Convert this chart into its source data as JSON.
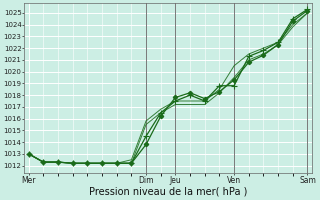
{
  "bg_color": "#cceee4",
  "grid_color": "#ffffff",
  "line_color": "#1a6b1a",
  "xlabel": "Pression niveau de la mer( hPa )",
  "xlabel_fontsize": 7,
  "yticks": [
    1012,
    1013,
    1014,
    1015,
    1016,
    1017,
    1018,
    1019,
    1020,
    1021,
    1022,
    1023,
    1024,
    1025
  ],
  "ylim": [
    1011.4,
    1025.8
  ],
  "xtick_labels": [
    "Mer",
    "Dim",
    "Jeu",
    "Ven",
    "Sam"
  ],
  "xtick_positions": [
    0,
    8,
    10,
    14,
    19
  ],
  "vline_positions": [
    8,
    10,
    14,
    19
  ],
  "xlim": [
    -0.3,
    19.3
  ],
  "series1_x": [
    0,
    1,
    2,
    3,
    4,
    5,
    6,
    7,
    8,
    9,
    10,
    11,
    12,
    13,
    14,
    15,
    16,
    17,
    18,
    19
  ],
  "series1_y": [
    1013.0,
    1012.3,
    1012.3,
    1012.2,
    1012.2,
    1012.2,
    1012.2,
    1012.2,
    1013.8,
    1016.2,
    1017.8,
    1018.2,
    1017.7,
    1018.3,
    1019.3,
    1020.8,
    1021.4,
    1022.3,
    1024.3,
    1025.2
  ],
  "series2_x": [
    0,
    1,
    2,
    3,
    4,
    5,
    6,
    7,
    8,
    9,
    10,
    11,
    12,
    13,
    14,
    15,
    16,
    17,
    18,
    19
  ],
  "series2_y": [
    1013.0,
    1012.3,
    1012.3,
    1012.2,
    1012.2,
    1012.2,
    1012.2,
    1012.2,
    1014.5,
    1016.5,
    1017.5,
    1018.0,
    1017.5,
    1018.8,
    1018.8,
    1021.3,
    1021.8,
    1022.5,
    1024.5,
    1025.3
  ],
  "series3_x": [
    0,
    1,
    2,
    3,
    4,
    5,
    6,
    7,
    8,
    9,
    10,
    11,
    12,
    13,
    14,
    15,
    16,
    17,
    18,
    19
  ],
  "series3_y": [
    1013.0,
    1012.3,
    1012.3,
    1012.2,
    1012.2,
    1012.2,
    1012.2,
    1012.5,
    1015.8,
    1016.8,
    1017.5,
    1017.5,
    1017.5,
    1018.5,
    1020.5,
    1021.5,
    1022.0,
    1022.5,
    1024.0,
    1025.0
  ],
  "series4_x": [
    0,
    1,
    2,
    3,
    4,
    5,
    6,
    7,
    8,
    9,
    10,
    11,
    12,
    13,
    14,
    15,
    16,
    17,
    18,
    19
  ],
  "series4_y": [
    1013.0,
    1012.3,
    1012.3,
    1012.2,
    1012.2,
    1012.2,
    1012.2,
    1012.2,
    1015.5,
    1016.5,
    1017.2,
    1017.2,
    1017.2,
    1018.2,
    1019.5,
    1021.0,
    1021.5,
    1022.3,
    1023.8,
    1025.0
  ],
  "marker1": "D",
  "marker2": "D",
  "markersize": 2.2,
  "linewidth1": 0.9,
  "linewidth2": 0.7
}
